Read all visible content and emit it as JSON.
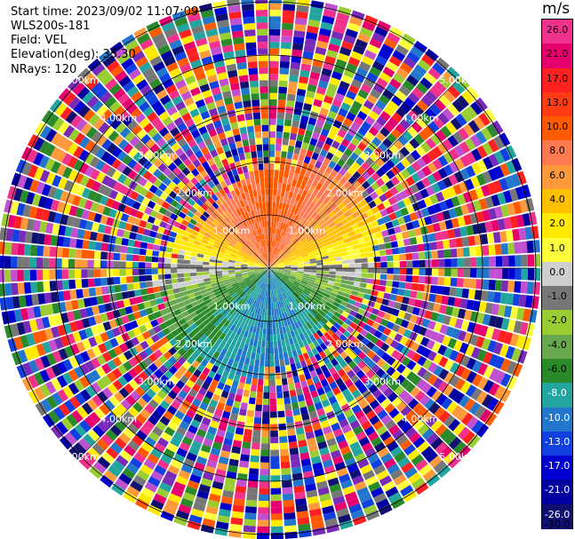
{
  "header": {
    "start_time": "Start time: 2023/09/02 11:07:09",
    "instrument": "WLS200s-181",
    "field": "Field: VEL",
    "elevation": "Elevation(deg): 35.30",
    "nrays": "NRays: 120"
  },
  "colorbar": {
    "unit": "m/s",
    "ticks": [
      "26.0",
      "21.0",
      "17.0",
      "13.0",
      "10.0",
      "8.0",
      "6.0",
      "4.0",
      "2.0",
      "1.0",
      "0.0",
      "-1.0",
      "-2.0",
      "-4.0",
      "-6.0",
      "-8.0",
      "-10.0",
      "-13.0",
      "-17.0",
      "-21.0",
      "-26.0",
      "-30.0"
    ],
    "colors": [
      "#f0328c",
      "#e6006e",
      "#ff2020",
      "#ff3c14",
      "#ff5a00",
      "#ff7a50",
      "#ff9a3c",
      "#ffc000",
      "#ffea00",
      "#ffff3c",
      "#cfcfcf",
      "#777777",
      "#9acd32",
      "#6aa84f",
      "#2a8a2a",
      "#22a5a0",
      "#2277cc",
      "#1040e0",
      "#0000d0",
      "#0000a0",
      "#101070"
    ],
    "light_label_from": 15
  },
  "chart_data": {
    "type": "polar_ppi",
    "title": "",
    "range_rings_km": [
      1,
      2,
      3,
      4,
      5
    ],
    "range_ring_labels": [
      "1.00km",
      "2.00km",
      "3.00km",
      "4.00km",
      "5.00km"
    ],
    "max_range_km": 5.0,
    "nrays": 120,
    "azimuth_step_deg": 3,
    "field": "VEL",
    "velocity_structure": {
      "near_range_km": 1.9,
      "north_sector_ms": 10.0,
      "south_sector_ms": -8.0,
      "zero_line_azimuth_deg": [
        85,
        275
      ],
      "beyond_range": "noise"
    }
  }
}
